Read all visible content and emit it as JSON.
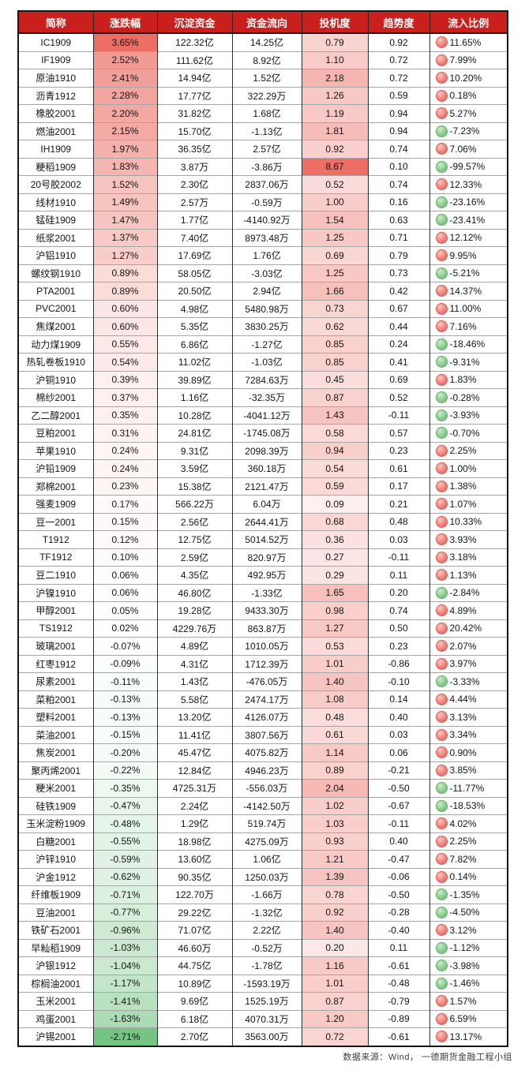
{
  "footer": {
    "source": "数据来源：Wind， 一德期货金融工程小组"
  },
  "colors": {
    "header_bg": "#c9201d",
    "header_text": "#ffffff",
    "change_pos_max": "#ec6e64",
    "change_neg_max": "#74c584",
    "spec_max": "#ec6e64",
    "inflow_up_dot": "#ee837a",
    "inflow_down_dot": "#8bcd8e"
  },
  "scales": {
    "change_max": 3.65,
    "change_min": -2.71,
    "spec_max": 8.67
  },
  "chart_data": {
    "type": "table",
    "columns": [
      "简称",
      "涨跌幅",
      "沉淀资金",
      "资金流向",
      "投机度",
      "趋势度",
      "流入比例"
    ],
    "rows": [
      [
        "IC1909",
        "3.65%",
        "122.32亿",
        "14.25亿",
        "0.79",
        "0.92",
        "11.65%"
      ],
      [
        "IF1909",
        "2.52%",
        "111.62亿",
        "8.92亿",
        "1.10",
        "0.72",
        "7.99%"
      ],
      [
        "原油1910",
        "2.41%",
        "14.94亿",
        "1.52亿",
        "2.18",
        "0.72",
        "10.20%"
      ],
      [
        "沥青1912",
        "2.28%",
        "17.77亿",
        "322.29万",
        "1.26",
        "0.59",
        "0.18%"
      ],
      [
        "橡胶2001",
        "2.20%",
        "31.82亿",
        "1.68亿",
        "1.19",
        "0.94",
        "5.27%"
      ],
      [
        "燃油2001",
        "2.15%",
        "15.70亿",
        "-1.13亿",
        "1.81",
        "0.94",
        "-7.23%"
      ],
      [
        "IH1909",
        "1.97%",
        "36.35亿",
        "2.57亿",
        "0.92",
        "0.74",
        "7.06%"
      ],
      [
        "粳稻1909",
        "1.83%",
        "3.87万",
        "-3.86万",
        "8.67",
        "0.10",
        "-99.57%"
      ],
      [
        "20号胶2002",
        "1.52%",
        "2.30亿",
        "2837.06万",
        "0.52",
        "0.74",
        "12.33%"
      ],
      [
        "线材1910",
        "1.49%",
        "2.57万",
        "-0.59万",
        "1.00",
        "0.16",
        "-23.16%"
      ],
      [
        "锰硅1909",
        "1.47%",
        "1.77亿",
        "-4140.92万",
        "1.54",
        "0.63",
        "-23.41%"
      ],
      [
        "纸浆2001",
        "1.37%",
        "7.40亿",
        "8973.48万",
        "1.25",
        "0.71",
        "12.12%"
      ],
      [
        "沪铝1910",
        "1.27%",
        "17.69亿",
        "1.76亿",
        "0.69",
        "0.79",
        "9.95%"
      ],
      [
        "螺纹钢1910",
        "0.89%",
        "58.05亿",
        "-3.03亿",
        "1.25",
        "0.73",
        "-5.21%"
      ],
      [
        "PTA2001",
        "0.89%",
        "20.50亿",
        "2.94亿",
        "1.66",
        "0.42",
        "14.37%"
      ],
      [
        "PVC2001",
        "0.60%",
        "4.98亿",
        "5480.98万",
        "0.73",
        "0.67",
        "11.00%"
      ],
      [
        "焦煤2001",
        "0.60%",
        "5.35亿",
        "3830.25万",
        "0.62",
        "0.44",
        "7.16%"
      ],
      [
        "动力煤1909",
        "0.55%",
        "6.86亿",
        "-1.27亿",
        "0.85",
        "0.24",
        "-18.46%"
      ],
      [
        "热轧卷板1910",
        "0.54%",
        "11.02亿",
        "-1.03亿",
        "0.85",
        "0.41",
        "-9.31%"
      ],
      [
        "沪铜1910",
        "0.39%",
        "39.89亿",
        "7284.63万",
        "0.45",
        "0.69",
        "1.83%"
      ],
      [
        "棉纱2001",
        "0.37%",
        "1.16亿",
        "-32.35万",
        "0.87",
        "0.52",
        "-0.28%"
      ],
      [
        "乙二醇2001",
        "0.35%",
        "10.28亿",
        "-4041.12万",
        "1.43",
        "-0.11",
        "-3.93%"
      ],
      [
        "豆粕2001",
        "0.31%",
        "24.81亿",
        "-1745.08万",
        "0.58",
        "0.57",
        "-0.70%"
      ],
      [
        "苹果1910",
        "0.24%",
        "9.31亿",
        "2098.39万",
        "0.94",
        "0.23",
        "2.25%"
      ],
      [
        "沪铅1909",
        "0.24%",
        "3.59亿",
        "360.18万",
        "0.54",
        "0.61",
        "1.00%"
      ],
      [
        "郑棉2001",
        "0.23%",
        "15.38亿",
        "2121.47万",
        "0.59",
        "0.17",
        "1.38%"
      ],
      [
        "强麦1909",
        "0.17%",
        "566.22万",
        "6.04万",
        "0.09",
        "0.21",
        "1.07%"
      ],
      [
        "豆一2001",
        "0.15%",
        "2.56亿",
        "2644.41万",
        "0.68",
        "0.48",
        "10.33%"
      ],
      [
        "T1912",
        "0.12%",
        "12.75亿",
        "5014.52万",
        "0.36",
        "0.03",
        "3.93%"
      ],
      [
        "TF1912",
        "0.10%",
        "2.59亿",
        "820.97万",
        "0.27",
        "-0.11",
        "3.18%"
      ],
      [
        "豆二1910",
        "0.06%",
        "4.35亿",
        "492.95万",
        "0.29",
        "0.11",
        "1.13%"
      ],
      [
        "沪镍1910",
        "0.06%",
        "46.80亿",
        "-1.33亿",
        "1.65",
        "0.20",
        "-2.84%"
      ],
      [
        "甲醇2001",
        "0.05%",
        "19.28亿",
        "9433.30万",
        "0.98",
        "0.74",
        "4.89%"
      ],
      [
        "TS1912",
        "0.02%",
        "4229.76万",
        "863.87万",
        "1.27",
        "0.50",
        "20.42%"
      ],
      [
        "玻璃2001",
        "-0.07%",
        "4.89亿",
        "1010.05万",
        "0.53",
        "0.23",
        "2.07%"
      ],
      [
        "红枣1912",
        "-0.09%",
        "4.31亿",
        "1712.39万",
        "1.01",
        "-0.86",
        "3.97%"
      ],
      [
        "尿素2001",
        "-0.11%",
        "1.43亿",
        "-476.05万",
        "1.40",
        "-0.10",
        "-3.33%"
      ],
      [
        "菜粕2001",
        "-0.13%",
        "5.58亿",
        "2474.17万",
        "1.08",
        "0.14",
        "4.44%"
      ],
      [
        "塑料2001",
        "-0.13%",
        "13.20亿",
        "4126.07万",
        "0.48",
        "0.40",
        "3.13%"
      ],
      [
        "菜油2001",
        "-0.15%",
        "11.41亿",
        "3807.56万",
        "0.61",
        "0.03",
        "3.34%"
      ],
      [
        "焦炭2001",
        "-0.20%",
        "45.47亿",
        "4075.82万",
        "1.14",
        "0.06",
        "0.90%"
      ],
      [
        "聚丙烯2001",
        "-0.22%",
        "12.84亿",
        "4946.23万",
        "0.89",
        "-0.21",
        "3.85%"
      ],
      [
        "粳米2001",
        "-0.35%",
        "4725.31万",
        "-556.03万",
        "2.04",
        "-0.50",
        "-11.77%"
      ],
      [
        "硅铁1909",
        "-0.47%",
        "2.24亿",
        "-4142.50万",
        "1.02",
        "-0.67",
        "-18.53%"
      ],
      [
        "玉米淀粉1909",
        "-0.48%",
        "1.29亿",
        "519.74万",
        "1.03",
        "-0.11",
        "4.02%"
      ],
      [
        "白糖2001",
        "-0.55%",
        "18.98亿",
        "4275.09万",
        "0.93",
        "0.40",
        "2.25%"
      ],
      [
        "沪锌1910",
        "-0.59%",
        "13.60亿",
        "1.06亿",
        "1.21",
        "-0.47",
        "7.82%"
      ],
      [
        "沪金1912",
        "-0.62%",
        "90.35亿",
        "1250.03万",
        "1.39",
        "-0.06",
        "0.14%"
      ],
      [
        "纤维板1909",
        "-0.71%",
        "122.70万",
        "-1.66万",
        "0.78",
        "-0.50",
        "-1.35%"
      ],
      [
        "豆油2001",
        "-0.77%",
        "29.22亿",
        "-1.32亿",
        "0.92",
        "-0.28",
        "-4.50%"
      ],
      [
        "铁矿石2001",
        "-0.96%",
        "71.07亿",
        "2.22亿",
        "1.40",
        "-0.40",
        "3.12%"
      ],
      [
        "早籼稻1909",
        "-1.03%",
        "46.60万",
        "-0.52万",
        "0.20",
        "0.11",
        "-1.12%"
      ],
      [
        "沪银1912",
        "-1.04%",
        "44.75亿",
        "-1.78亿",
        "1.16",
        "-0.61",
        "-3.98%"
      ],
      [
        "棕榈油2001",
        "-1.17%",
        "10.89亿",
        "-1593.19万",
        "1.01",
        "-0.48",
        "-1.46%"
      ],
      [
        "玉米2001",
        "-1.41%",
        "9.69亿",
        "1525.19万",
        "0.87",
        "-0.79",
        "1.57%"
      ],
      [
        "鸡蛋2001",
        "-1.63%",
        "6.18亿",
        "4070.31万",
        "1.20",
        "-0.89",
        "6.59%"
      ],
      [
        "沪锡2001",
        "-2.71%",
        "2.70亿",
        "3563.00万",
        "0.72",
        "-0.61",
        "13.17%"
      ]
    ]
  }
}
